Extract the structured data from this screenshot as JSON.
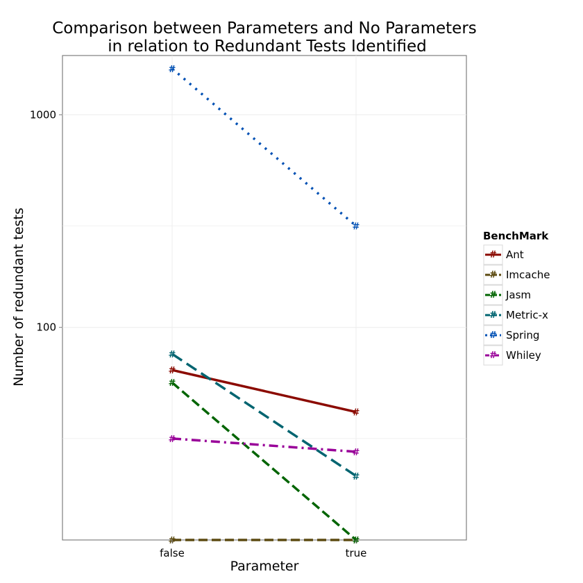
{
  "chart_data": {
    "type": "line",
    "title": [
      "Comparison between Parameters and No Parameters",
      "in relation to Redundant Tests Identified"
    ],
    "xlabel": "Parameter",
    "ylabel": "Number of redundant tests",
    "categories": [
      "false",
      "true"
    ],
    "y_scale": "log",
    "ylim": [
      10,
      1900
    ],
    "y_ticks": [
      100,
      1000
    ],
    "y_tick_labels": [
      "100",
      "1000"
    ],
    "grid": true,
    "point_symbol": "#",
    "legend": {
      "title": "BenchMark",
      "position": "right"
    },
    "series": [
      {
        "name": "Ant",
        "values": [
          63,
          40
        ],
        "color": "#8b0a00",
        "dash": "solid"
      },
      {
        "name": "Imcache",
        "values": [
          10,
          10
        ],
        "color": "#5c4a10",
        "dash": "dashed"
      },
      {
        "name": "Jasm",
        "values": [
          55,
          10
        ],
        "color": "#006400",
        "dash": "dashed"
      },
      {
        "name": "Metric-x",
        "values": [
          75,
          20
        ],
        "color": "#006470",
        "dash": "longdash"
      },
      {
        "name": "Spring",
        "values": [
          1650,
          300
        ],
        "color": "#0050b4",
        "dash": "dotted"
      },
      {
        "name": "Whiley",
        "values": [
          30,
          26
        ],
        "color": "#990099",
        "dash": "dotdash"
      }
    ]
  }
}
